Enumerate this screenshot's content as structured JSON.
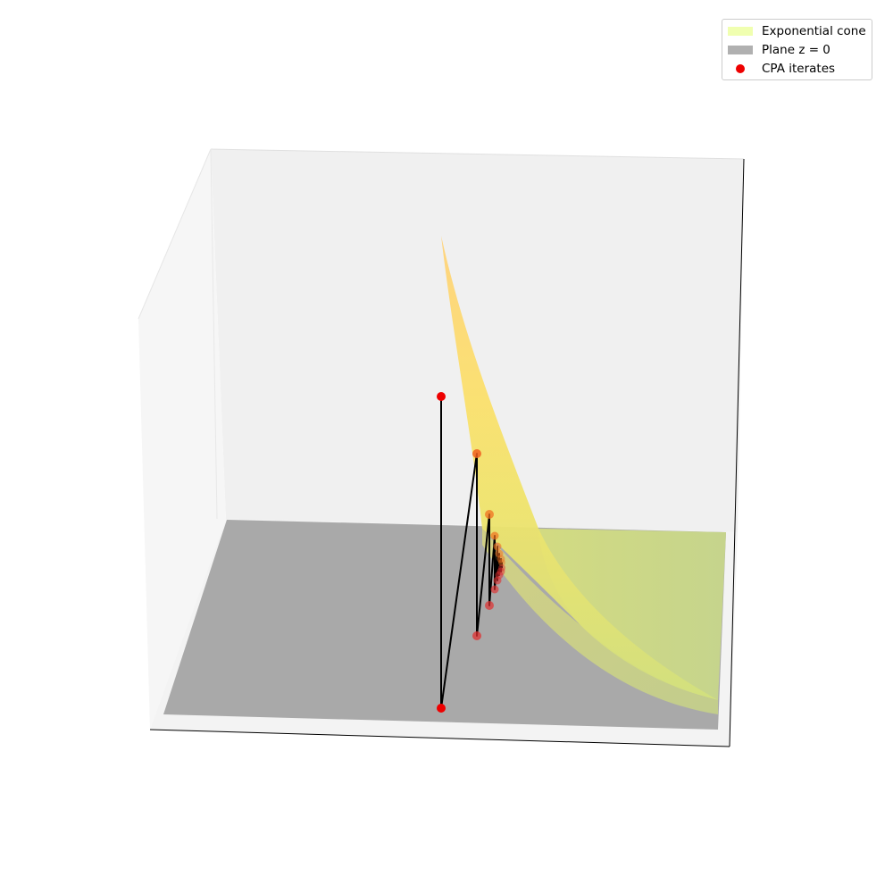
{
  "chart_data": {
    "type": "surface3d",
    "title": "",
    "legend_position": "top-right",
    "legend": [
      {
        "key": "cone",
        "label": "Exponential cone",
        "color": "#f0ffb0",
        "marker": "patch"
      },
      {
        "key": "plane",
        "label": "Plane z = 0",
        "color": "#b0b0b0",
        "marker": "patch"
      },
      {
        "key": "iterates",
        "label": "CPA iterates",
        "color": "#ee0000",
        "marker": "dot"
      }
    ],
    "surfaces": [
      {
        "name": "Exponential cone",
        "colormap": [
          "#ffd77a",
          "#f8e46a",
          "#d6e28a",
          "#c9dc88"
        ]
      },
      {
        "name": "Plane z = 0",
        "color": "#a9a9a9"
      }
    ],
    "axes_visible": false,
    "grid": false,
    "iterates_note": "CPA iterates alternate between the plane and the cone, converging to the intersection",
    "iterate_count": 16
  }
}
